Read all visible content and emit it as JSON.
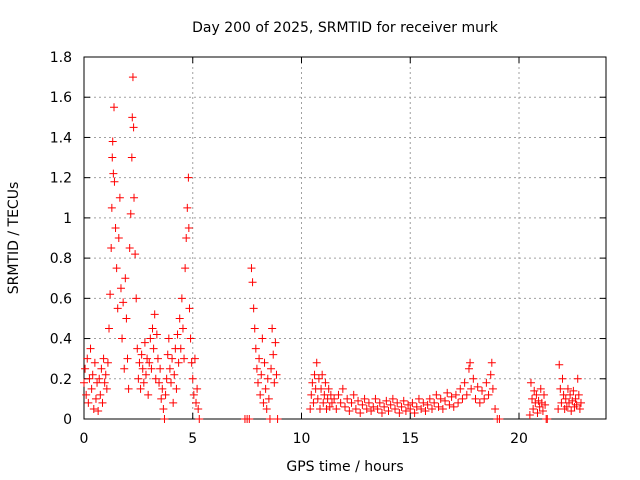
{
  "chart_data": {
    "type": "scatter",
    "title": "Day 200 of 2025, SRMTID for receiver murk",
    "xlabel": "GPS time / hours",
    "ylabel": "SRMTID / TECUs",
    "xlim": [
      0,
      24
    ],
    "ylim": [
      0,
      1.8
    ],
    "xticks": [
      0,
      5,
      10,
      15,
      20
    ],
    "yticks": [
      0,
      0.2,
      0.4,
      0.6,
      0.8,
      1,
      1.2,
      1.4,
      1.6,
      1.8
    ],
    "xtick_labels": [
      "0",
      "5",
      "10",
      "15",
      "20"
    ],
    "ytick_labels": [
      "0",
      "0.2",
      "0.4",
      "0.6",
      "0.8",
      "1",
      "1.2",
      "1.4",
      "1.6",
      "1.8"
    ],
    "grid": true,
    "marker": "+",
    "color": "#ff0000",
    "series": [
      {
        "name": "SRMTID",
        "points": [
          [
            0.0,
            0.18
          ],
          [
            0.05,
            0.25
          ],
          [
            0.1,
            0.12
          ],
          [
            0.15,
            0.3
          ],
          [
            0.2,
            0.08
          ],
          [
            0.25,
            0.2
          ],
          [
            0.3,
            0.35
          ],
          [
            0.35,
            0.15
          ],
          [
            0.4,
            0.22
          ],
          [
            0.45,
            0.05
          ],
          [
            0.5,
            0.28
          ],
          [
            0.55,
            0.1
          ],
          [
            0.6,
            0.18
          ],
          [
            0.65,
            0.04
          ],
          [
            0.7,
            0.2
          ],
          [
            0.75,
            0.12
          ],
          [
            0.8,
            0.25
          ],
          [
            0.85,
            0.08
          ],
          [
            0.9,
            0.3
          ],
          [
            0.95,
            0.18
          ],
          [
            1.0,
            0.22
          ],
          [
            1.05,
            0.15
          ],
          [
            1.1,
            0.28
          ],
          [
            1.15,
            0.45
          ],
          [
            1.2,
            0.62
          ],
          [
            1.25,
            0.85
          ],
          [
            1.28,
            1.05
          ],
          [
            1.3,
            1.3
          ],
          [
            1.32,
            1.38
          ],
          [
            1.35,
            1.22
          ],
          [
            1.38,
            1.55
          ],
          [
            1.4,
            1.18
          ],
          [
            1.45,
            0.95
          ],
          [
            1.5,
            0.75
          ],
          [
            1.55,
            0.55
          ],
          [
            1.6,
            0.9
          ],
          [
            1.65,
            1.1
          ],
          [
            1.7,
            0.65
          ],
          [
            1.75,
            0.4
          ],
          [
            1.8,
            0.58
          ],
          [
            1.85,
            0.25
          ],
          [
            1.9,
            0.7
          ],
          [
            1.95,
            0.5
          ],
          [
            2.0,
            0.3
          ],
          [
            2.05,
            0.15
          ],
          [
            2.1,
            0.85
          ],
          [
            2.15,
            1.02
          ],
          [
            2.2,
            1.3
          ],
          [
            2.22,
            1.5
          ],
          [
            2.25,
            1.7
          ],
          [
            2.28,
            1.45
          ],
          [
            2.3,
            1.1
          ],
          [
            2.35,
            0.82
          ],
          [
            2.4,
            0.6
          ],
          [
            2.45,
            0.35
          ],
          [
            2.5,
            0.2
          ],
          [
            2.55,
            0.28
          ],
          [
            2.6,
            0.15
          ],
          [
            2.65,
            0.32
          ],
          [
            2.7,
            0.25
          ],
          [
            2.75,
            0.18
          ],
          [
            2.8,
            0.38
          ],
          [
            2.85,
            0.22
          ],
          [
            2.9,
            0.3
          ],
          [
            2.95,
            0.12
          ],
          [
            3.0,
            0.28
          ],
          [
            3.05,
            0.4
          ],
          [
            3.1,
            0.25
          ],
          [
            3.15,
            0.45
          ],
          [
            3.2,
            0.35
          ],
          [
            3.25,
            0.52
          ],
          [
            3.3,
            0.2
          ],
          [
            3.35,
            0.42
          ],
          [
            3.4,
            0.3
          ],
          [
            3.45,
            0.18
          ],
          [
            3.5,
            0.25
          ],
          [
            3.55,
            0.1
          ],
          [
            3.6,
            0.15
          ],
          [
            3.65,
            0.05
          ],
          [
            3.7,
            0.0
          ],
          [
            3.75,
            0.12
          ],
          [
            3.8,
            0.2
          ],
          [
            3.85,
            0.32
          ],
          [
            3.9,
            0.4
          ],
          [
            3.95,
            0.25
          ],
          [
            4.0,
            0.18
          ],
          [
            4.05,
            0.3
          ],
          [
            4.1,
            0.08
          ],
          [
            4.15,
            0.22
          ],
          [
            4.2,
            0.35
          ],
          [
            4.25,
            0.15
          ],
          [
            4.3,
            0.42
          ],
          [
            4.35,
            0.28
          ],
          [
            4.4,
            0.5
          ],
          [
            4.45,
            0.35
          ],
          [
            4.5,
            0.6
          ],
          [
            4.55,
            0.45
          ],
          [
            4.6,
            0.3
          ],
          [
            4.65,
            0.75
          ],
          [
            4.7,
            0.9
          ],
          [
            4.75,
            1.05
          ],
          [
            4.8,
            1.2
          ],
          [
            4.82,
            0.95
          ],
          [
            4.85,
            0.55
          ],
          [
            4.9,
            0.4
          ],
          [
            4.95,
            0.28
          ],
          [
            5.0,
            0.2
          ],
          [
            5.05,
            0.12
          ],
          [
            5.1,
            0.3
          ],
          [
            5.15,
            0.08
          ],
          [
            5.2,
            0.15
          ],
          [
            5.25,
            0.05
          ],
          [
            5.3,
            0.0
          ],
          [
            7.4,
            0.0
          ],
          [
            7.5,
            0.0
          ],
          [
            7.6,
            0.0
          ],
          [
            7.7,
            0.75
          ],
          [
            7.75,
            0.68
          ],
          [
            7.8,
            0.55
          ],
          [
            7.85,
            0.45
          ],
          [
            7.9,
            0.35
          ],
          [
            7.95,
            0.25
          ],
          [
            8.0,
            0.18
          ],
          [
            8.05,
            0.3
          ],
          [
            8.1,
            0.12
          ],
          [
            8.15,
            0.22
          ],
          [
            8.2,
            0.4
          ],
          [
            8.25,
            0.08
          ],
          [
            8.3,
            0.28
          ],
          [
            8.35,
            0.15
          ],
          [
            8.4,
            0.05
          ],
          [
            8.45,
            0.2
          ],
          [
            8.5,
            0.1
          ],
          [
            8.55,
            0.0
          ],
          [
            8.6,
            0.25
          ],
          [
            8.65,
            0.45
          ],
          [
            8.7,
            0.32
          ],
          [
            8.75,
            0.18
          ],
          [
            8.8,
            0.38
          ],
          [
            8.85,
            0.22
          ],
          [
            8.9,
            0.0
          ],
          [
            10.4,
            0.05
          ],
          [
            10.45,
            0.12
          ],
          [
            10.5,
            0.18
          ],
          [
            10.55,
            0.08
          ],
          [
            10.6,
            0.22
          ],
          [
            10.65,
            0.15
          ],
          [
            10.7,
            0.28
          ],
          [
            10.75,
            0.1
          ],
          [
            10.8,
            0.2
          ],
          [
            10.85,
            0.05
          ],
          [
            10.9,
            0.15
          ],
          [
            10.95,
            0.22
          ],
          [
            11.0,
            0.08
          ],
          [
            11.05,
            0.12
          ],
          [
            11.1,
            0.18
          ],
          [
            11.15,
            0.05
          ],
          [
            11.2,
            0.1
          ],
          [
            11.25,
            0.15
          ],
          [
            11.3,
            0.06
          ],
          [
            11.35,
            0.12
          ],
          [
            11.4,
            0.08
          ],
          [
            11.5,
            0.1
          ],
          [
            11.6,
            0.05
          ],
          [
            11.7,
            0.12
          ],
          [
            11.8,
            0.08
          ],
          [
            11.9,
            0.15
          ],
          [
            12.0,
            0.06
          ],
          [
            12.1,
            0.1
          ],
          [
            12.2,
            0.04
          ],
          [
            12.3,
            0.08
          ],
          [
            12.4,
            0.12
          ],
          [
            12.5,
            0.05
          ],
          [
            12.6,
            0.09
          ],
          [
            12.7,
            0.03
          ],
          [
            12.8,
            0.07
          ],
          [
            12.9,
            0.1
          ],
          [
            13.0,
            0.05
          ],
          [
            13.1,
            0.08
          ],
          [
            13.2,
            0.04
          ],
          [
            13.3,
            0.06
          ],
          [
            13.4,
            0.1
          ],
          [
            13.5,
            0.05
          ],
          [
            13.6,
            0.08
          ],
          [
            13.7,
            0.03
          ],
          [
            13.8,
            0.06
          ],
          [
            13.9,
            0.09
          ],
          [
            14.0,
            0.04
          ],
          [
            14.1,
            0.07
          ],
          [
            14.2,
            0.1
          ],
          [
            14.3,
            0.05
          ],
          [
            14.4,
            0.08
          ],
          [
            14.5,
            0.03
          ],
          [
            14.6,
            0.06
          ],
          [
            14.7,
            0.09
          ],
          [
            14.8,
            0.04
          ],
          [
            14.9,
            0.07
          ],
          [
            15.0,
            0.05
          ],
          [
            15.1,
            0.08
          ],
          [
            15.2,
            0.03
          ],
          [
            15.3,
            0.06
          ],
          [
            15.4,
            0.1
          ],
          [
            15.5,
            0.05
          ],
          [
            15.6,
            0.08
          ],
          [
            15.7,
            0.04
          ],
          [
            15.8,
            0.07
          ],
          [
            15.9,
            0.1
          ],
          [
            16.0,
            0.05
          ],
          [
            16.1,
            0.08
          ],
          [
            16.2,
            0.12
          ],
          [
            16.3,
            0.06
          ],
          [
            16.4,
            0.1
          ],
          [
            16.5,
            0.05
          ],
          [
            16.6,
            0.09
          ],
          [
            16.7,
            0.13
          ],
          [
            16.8,
            0.07
          ],
          [
            16.9,
            0.11
          ],
          [
            17.0,
            0.06
          ],
          [
            17.1,
            0.12
          ],
          [
            17.2,
            0.08
          ],
          [
            17.3,
            0.15
          ],
          [
            17.4,
            0.1
          ],
          [
            17.5,
            0.18
          ],
          [
            17.6,
            0.12
          ],
          [
            17.7,
            0.25
          ],
          [
            17.75,
            0.28
          ],
          [
            17.8,
            0.15
          ],
          [
            17.9,
            0.2
          ],
          [
            18.0,
            0.1
          ],
          [
            18.1,
            0.16
          ],
          [
            18.2,
            0.08
          ],
          [
            18.3,
            0.14
          ],
          [
            18.4,
            0.1
          ],
          [
            18.5,
            0.18
          ],
          [
            18.6,
            0.12
          ],
          [
            18.7,
            0.22
          ],
          [
            18.75,
            0.28
          ],
          [
            18.8,
            0.15
          ],
          [
            18.9,
            0.05
          ],
          [
            19.0,
            0.0
          ],
          [
            19.1,
            0.0
          ],
          [
            20.5,
            0.02
          ],
          [
            20.55,
            0.18
          ],
          [
            20.6,
            0.1
          ],
          [
            20.65,
            0.05
          ],
          [
            20.7,
            0.14
          ],
          [
            20.75,
            0.08
          ],
          [
            20.8,
            0.12
          ],
          [
            20.85,
            0.03
          ],
          [
            20.9,
            0.09
          ],
          [
            20.95,
            0.06
          ],
          [
            21.0,
            0.15
          ],
          [
            21.05,
            0.08
          ],
          [
            21.1,
            0.04
          ],
          [
            21.15,
            0.12
          ],
          [
            21.2,
            0.07
          ],
          [
            21.25,
            0.0
          ],
          [
            21.3,
            0.0
          ],
          [
            21.8,
            0.05
          ],
          [
            21.85,
            0.27
          ],
          [
            21.9,
            0.15
          ],
          [
            21.95,
            0.08
          ],
          [
            22.0,
            0.2
          ],
          [
            22.05,
            0.12
          ],
          [
            22.1,
            0.05
          ],
          [
            22.15,
            0.1
          ],
          [
            22.2,
            0.06
          ],
          [
            22.25,
            0.15
          ],
          [
            22.3,
            0.08
          ],
          [
            22.35,
            0.12
          ],
          [
            22.4,
            0.04
          ],
          [
            22.45,
            0.09
          ],
          [
            22.5,
            0.14
          ],
          [
            22.55,
            0.06
          ],
          [
            22.6,
            0.1
          ],
          [
            22.65,
            0.07
          ],
          [
            22.7,
            0.2
          ],
          [
            22.75,
            0.12
          ],
          [
            22.8,
            0.05
          ],
          [
            22.85,
            0.08
          ]
        ]
      }
    ]
  }
}
